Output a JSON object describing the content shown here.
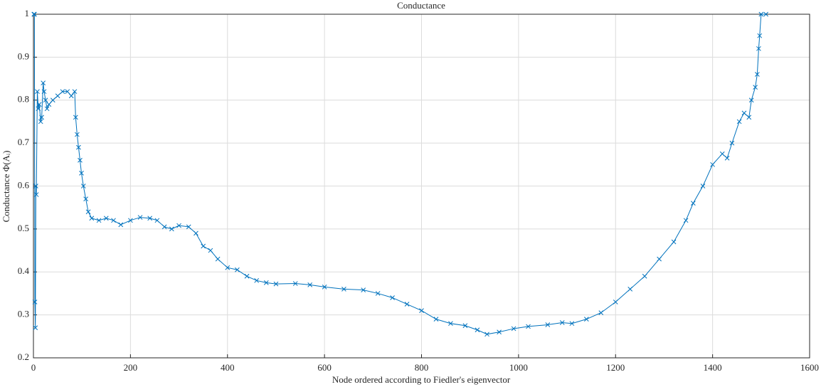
{
  "chart_data": {
    "type": "line",
    "title": "Conductance",
    "x_label": "Node ordered according to Fiedler's eigenvector",
    "y_label": "Conductance Φ(Aᵢ)",
    "xlim": [
      0,
      1600
    ],
    "ylim": [
      0.2,
      1
    ],
    "xticks": [
      0,
      200,
      400,
      600,
      800,
      1000,
      1200,
      1400,
      1600
    ],
    "yticks": [
      0.2,
      0.3,
      0.4,
      0.5,
      0.6,
      0.7,
      0.8,
      0.9,
      1
    ],
    "grid": true,
    "series": [
      {
        "color": "#0072bd",
        "marker": "x",
        "x": [
          1,
          2,
          3,
          4,
          5,
          6,
          8,
          10,
          12,
          15,
          17,
          20,
          22,
          25,
          28,
          32,
          40,
          50,
          60,
          70,
          78,
          85,
          87,
          90,
          93,
          96,
          99,
          103,
          108,
          113,
          120,
          135,
          150,
          165,
          180,
          200,
          220,
          240,
          255,
          270,
          285,
          300,
          320,
          335,
          350,
          365,
          380,
          400,
          420,
          440,
          460,
          480,
          500,
          540,
          570,
          600,
          640,
          680,
          710,
          740,
          770,
          800,
          830,
          860,
          890,
          915,
          935,
          960,
          990,
          1020,
          1060,
          1090,
          1110,
          1140,
          1170,
          1200,
          1230,
          1260,
          1290,
          1320,
          1345,
          1360,
          1380,
          1400,
          1420,
          1430,
          1440,
          1455,
          1465,
          1475,
          1480,
          1488,
          1492,
          1495,
          1497,
          1500,
          1510
        ],
        "values": [
          1,
          1,
          0.33,
          0.27,
          0.6,
          0.58,
          0.82,
          0.78,
          0.79,
          0.75,
          0.76,
          0.84,
          0.82,
          0.8,
          0.78,
          0.79,
          0.8,
          0.81,
          0.82,
          0.82,
          0.81,
          0.82,
          0.76,
          0.72,
          0.69,
          0.66,
          0.63,
          0.6,
          0.57,
          0.54,
          0.525,
          0.52,
          0.525,
          0.52,
          0.51,
          0.52,
          0.527,
          0.525,
          0.52,
          0.505,
          0.5,
          0.508,
          0.505,
          0.49,
          0.46,
          0.45,
          0.43,
          0.41,
          0.405,
          0.39,
          0.38,
          0.375,
          0.372,
          0.373,
          0.37,
          0.365,
          0.36,
          0.358,
          0.35,
          0.34,
          0.325,
          0.31,
          0.29,
          0.28,
          0.275,
          0.265,
          0.255,
          0.26,
          0.268,
          0.273,
          0.277,
          0.282,
          0.28,
          0.29,
          0.305,
          0.33,
          0.36,
          0.39,
          0.43,
          0.47,
          0.52,
          0.56,
          0.6,
          0.65,
          0.675,
          0.665,
          0.7,
          0.75,
          0.77,
          0.76,
          0.8,
          0.83,
          0.86,
          0.92,
          0.95,
          1,
          1
        ]
      }
    ]
  }
}
